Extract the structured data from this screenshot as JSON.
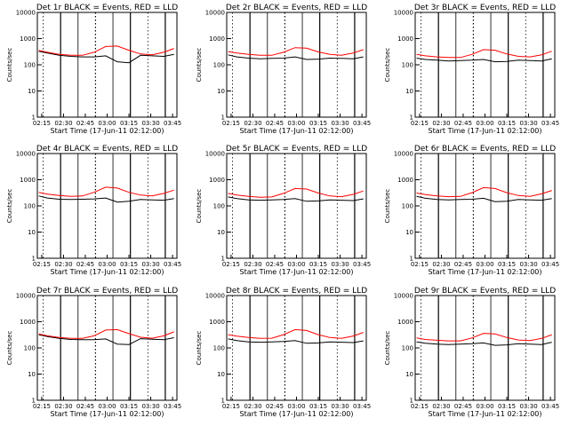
{
  "figure": {
    "tick_labels_x": [
      "02:15",
      "02:30",
      "02:45",
      "03:00",
      "03:15",
      "03:30",
      "03:45"
    ],
    "tick_labels_y": [
      "10000",
      "1000",
      "100",
      "10",
      "1"
    ],
    "colors": {
      "events": "#000000",
      "lld": "#ff0000"
    }
  },
  "chart_data": [
    {
      "type": "line",
      "title": "Det 1r BLACK = Events, RED = LLD",
      "xlabel": "Start Time (17-Jun-11 02:12:00)",
      "ylabel": "Counts/sec",
      "xlim": [
        "02:12",
        "03:48"
      ],
      "ylim": [
        1,
        10000
      ],
      "yscale": "log",
      "series": [
        {
          "name": "Events",
          "color": "#000000",
          "x": [
            "02:13",
            "02:19",
            "02:27",
            "02:35",
            "02:43",
            "02:51",
            "02:59",
            "03:07",
            "03:15",
            "03:23",
            "03:31",
            "03:39",
            "03:46"
          ],
          "values": [
            330,
            280,
            230,
            210,
            200,
            200,
            220,
            130,
            120,
            230,
            220,
            210,
            250
          ]
        },
        {
          "name": "LLD",
          "color": "#ff0000",
          "x": [
            "02:13",
            "02:19",
            "02:27",
            "02:35",
            "02:43",
            "02:51",
            "02:59",
            "03:07",
            "03:15",
            "03:23",
            "03:31",
            "03:39",
            "03:46"
          ],
          "values": [
            350,
            300,
            250,
            230,
            230,
            300,
            500,
            520,
            360,
            260,
            240,
            300,
            420
          ]
        }
      ]
    },
    {
      "type": "line",
      "title": "Det 2r BLACK = Events, RED = LLD",
      "xlabel": "Start Time (17-Jun-11 02:12:00)",
      "ylabel": "Counts/sec",
      "xlim": [
        "02:12",
        "03:48"
      ],
      "ylim": [
        1,
        10000
      ],
      "yscale": "log",
      "series": [
        {
          "name": "Events",
          "color": "#000000",
          "x": [
            "02:13",
            "02:19",
            "02:27",
            "02:35",
            "02:43",
            "02:51",
            "02:59",
            "03:07",
            "03:15",
            "03:23",
            "03:31",
            "03:39",
            "03:46"
          ],
          "values": [
            240,
            200,
            180,
            170,
            175,
            180,
            200,
            160,
            165,
            180,
            175,
            170,
            200
          ]
        },
        {
          "name": "LLD",
          "color": "#ff0000",
          "x": [
            "02:13",
            "02:19",
            "02:27",
            "02:35",
            "02:43",
            "02:51",
            "02:59",
            "03:07",
            "03:15",
            "03:23",
            "03:31",
            "03:39",
            "03:46"
          ],
          "values": [
            320,
            280,
            250,
            230,
            230,
            300,
            450,
            430,
            310,
            250,
            230,
            280,
            380
          ]
        }
      ]
    },
    {
      "type": "line",
      "title": "Det 3r BLACK = Events, RED = LLD",
      "xlabel": "Start Time (17-Jun-11 02:12:00)",
      "ylabel": "Counts/sec",
      "xlim": [
        "02:12",
        "03:48"
      ],
      "ylim": [
        1,
        10000
      ],
      "yscale": "log",
      "series": [
        {
          "name": "Events",
          "color": "#000000",
          "x": [
            "02:13",
            "02:19",
            "02:27",
            "02:35",
            "02:43",
            "02:51",
            "02:59",
            "03:07",
            "03:15",
            "03:23",
            "03:31",
            "03:39",
            "03:46"
          ],
          "values": [
            180,
            160,
            150,
            140,
            145,
            150,
            160,
            130,
            135,
            150,
            145,
            140,
            170
          ]
        },
        {
          "name": "LLD",
          "color": "#ff0000",
          "x": [
            "02:13",
            "02:19",
            "02:27",
            "02:35",
            "02:43",
            "02:51",
            "02:59",
            "03:07",
            "03:15",
            "03:23",
            "03:31",
            "03:39",
            "03:46"
          ],
          "values": [
            250,
            220,
            200,
            190,
            190,
            250,
            380,
            360,
            260,
            210,
            200,
            240,
            330
          ]
        }
      ]
    },
    {
      "type": "line",
      "title": "Det 4r BLACK = Events, RED = LLD",
      "xlabel": "Start Time (17-Jun-11 02:12:00)",
      "ylabel": "Counts/sec",
      "xlim": [
        "02:12",
        "03:48"
      ],
      "ylim": [
        1,
        10000
      ],
      "yscale": "log",
      "series": [
        {
          "name": "Events",
          "color": "#000000",
          "x": [
            "02:13",
            "02:19",
            "02:27",
            "02:35",
            "02:43",
            "02:51",
            "02:59",
            "03:07",
            "03:15",
            "03:23",
            "03:31",
            "03:39",
            "03:46"
          ],
          "values": [
            240,
            200,
            180,
            175,
            180,
            185,
            200,
            140,
            150,
            175,
            170,
            165,
            190
          ]
        },
        {
          "name": "LLD",
          "color": "#ff0000",
          "x": [
            "02:13",
            "02:19",
            "02:27",
            "02:35",
            "02:43",
            "02:51",
            "02:59",
            "03:07",
            "03:15",
            "03:23",
            "03:31",
            "03:39",
            "03:46"
          ],
          "values": [
            330,
            280,
            250,
            230,
            240,
            330,
            520,
            480,
            330,
            260,
            240,
            300,
            400
          ]
        }
      ]
    },
    {
      "type": "line",
      "title": "Det 5r BLACK = Events, RED = LLD",
      "xlabel": "Start Time (17-Jun-11 02:12:00)",
      "ylabel": "Counts/sec",
      "xlim": [
        "02:12",
        "03:48"
      ],
      "ylim": [
        1,
        10000
      ],
      "yscale": "log",
      "series": [
        {
          "name": "Events",
          "color": "#000000",
          "x": [
            "02:13",
            "02:19",
            "02:27",
            "02:35",
            "02:43",
            "02:51",
            "02:59",
            "03:07",
            "03:15",
            "03:23",
            "03:31",
            "03:39",
            "03:46"
          ],
          "values": [
            220,
            190,
            170,
            165,
            170,
            175,
            190,
            150,
            155,
            170,
            165,
            160,
            185
          ]
        },
        {
          "name": "LLD",
          "color": "#ff0000",
          "x": [
            "02:13",
            "02:19",
            "02:27",
            "02:35",
            "02:43",
            "02:51",
            "02:59",
            "03:07",
            "03:15",
            "03:23",
            "03:31",
            "03:39",
            "03:46"
          ],
          "values": [
            300,
            260,
            230,
            215,
            220,
            300,
            460,
            440,
            310,
            240,
            225,
            275,
            370
          ]
        }
      ]
    },
    {
      "type": "line",
      "title": "Det 6r BLACK = Events, RED = LLD",
      "xlabel": "Start Time (17-Jun-11 02:12:00)",
      "ylabel": "Counts/sec",
      "xlim": [
        "02:12",
        "03:48"
      ],
      "ylim": [
        1,
        10000
      ],
      "yscale": "log",
      "series": [
        {
          "name": "Events",
          "color": "#000000",
          "x": [
            "02:13",
            "02:19",
            "02:27",
            "02:35",
            "02:43",
            "02:51",
            "02:59",
            "03:07",
            "03:15",
            "03:23",
            "03:31",
            "03:39",
            "03:46"
          ],
          "values": [
            230,
            195,
            175,
            170,
            175,
            180,
            195,
            145,
            150,
            175,
            170,
            165,
            190
          ]
        },
        {
          "name": "LLD",
          "color": "#ff0000",
          "x": [
            "02:13",
            "02:19",
            "02:27",
            "02:35",
            "02:43",
            "02:51",
            "02:59",
            "03:07",
            "03:15",
            "03:23",
            "03:31",
            "03:39",
            "03:46"
          ],
          "values": [
            310,
            270,
            240,
            225,
            230,
            320,
            500,
            460,
            320,
            250,
            230,
            290,
            390
          ]
        }
      ]
    },
    {
      "type": "line",
      "title": "Det 7r BLACK = Events, RED = LLD",
      "xlabel": "Start Time (17-Jun-11 02:12:00)",
      "ylabel": "Counts/sec",
      "xlim": [
        "02:12",
        "03:48"
      ],
      "ylim": [
        1,
        10000
      ],
      "yscale": "log",
      "series": [
        {
          "name": "Events",
          "color": "#000000",
          "x": [
            "02:13",
            "02:19",
            "02:27",
            "02:35",
            "02:43",
            "02:51",
            "02:59",
            "03:07",
            "03:15",
            "03:23",
            "03:31",
            "03:39",
            "03:46"
          ],
          "values": [
            320,
            270,
            230,
            210,
            205,
            205,
            220,
            140,
            135,
            225,
            215,
            205,
            245
          ]
        },
        {
          "name": "LLD",
          "color": "#ff0000",
          "x": [
            "02:13",
            "02:19",
            "02:27",
            "02:35",
            "02:43",
            "02:51",
            "02:59",
            "03:07",
            "03:15",
            "03:23",
            "03:31",
            "03:39",
            "03:46"
          ],
          "values": [
            340,
            290,
            250,
            230,
            230,
            290,
            480,
            500,
            350,
            255,
            235,
            290,
            410
          ]
        }
      ]
    },
    {
      "type": "line",
      "title": "Det 8r BLACK = Events, RED = LLD",
      "xlabel": "Start Time (17-Jun-11 02:12:00)",
      "ylabel": "Counts/sec",
      "xlim": [
        "02:12",
        "03:48"
      ],
      "ylim": [
        1,
        10000
      ],
      "yscale": "log",
      "series": [
        {
          "name": "Events",
          "color": "#000000",
          "x": [
            "02:13",
            "02:19",
            "02:27",
            "02:35",
            "02:43",
            "02:51",
            "02:59",
            "03:07",
            "03:15",
            "03:23",
            "03:31",
            "03:39",
            "03:46"
          ],
          "values": [
            220,
            190,
            170,
            165,
            170,
            175,
            190,
            150,
            155,
            170,
            165,
            160,
            185
          ]
        },
        {
          "name": "LLD",
          "color": "#ff0000",
          "x": [
            "02:13",
            "02:19",
            "02:27",
            "02:35",
            "02:43",
            "02:51",
            "02:59",
            "03:07",
            "03:15",
            "03:23",
            "03:31",
            "03:39",
            "03:46"
          ],
          "values": [
            320,
            280,
            250,
            230,
            235,
            320,
            500,
            460,
            320,
            250,
            230,
            285,
            390
          ]
        }
      ]
    },
    {
      "type": "line",
      "title": "Det 9r BLACK = Events, RED = LLD",
      "xlabel": "Start Time (17-Jun-11 02:12:00)",
      "ylabel": "Counts/sec",
      "xlim": [
        "02:12",
        "03:48"
      ],
      "ylim": [
        1,
        10000
      ],
      "yscale": "log",
      "series": [
        {
          "name": "Events",
          "color": "#000000",
          "x": [
            "02:13",
            "02:19",
            "02:27",
            "02:35",
            "02:43",
            "02:51",
            "02:59",
            "03:07",
            "03:15",
            "03:23",
            "03:31",
            "03:39",
            "03:46"
          ],
          "values": [
            170,
            150,
            140,
            135,
            140,
            145,
            155,
            125,
            130,
            145,
            140,
            135,
            165
          ]
        },
        {
          "name": "LLD",
          "color": "#ff0000",
          "x": [
            "02:13",
            "02:19",
            "02:27",
            "02:35",
            "02:43",
            "02:51",
            "02:59",
            "03:07",
            "03:15",
            "03:23",
            "03:31",
            "03:39",
            "03:46"
          ],
          "values": [
            240,
            210,
            195,
            185,
            185,
            240,
            360,
            340,
            250,
            200,
            190,
            230,
            320
          ]
        }
      ]
    }
  ]
}
